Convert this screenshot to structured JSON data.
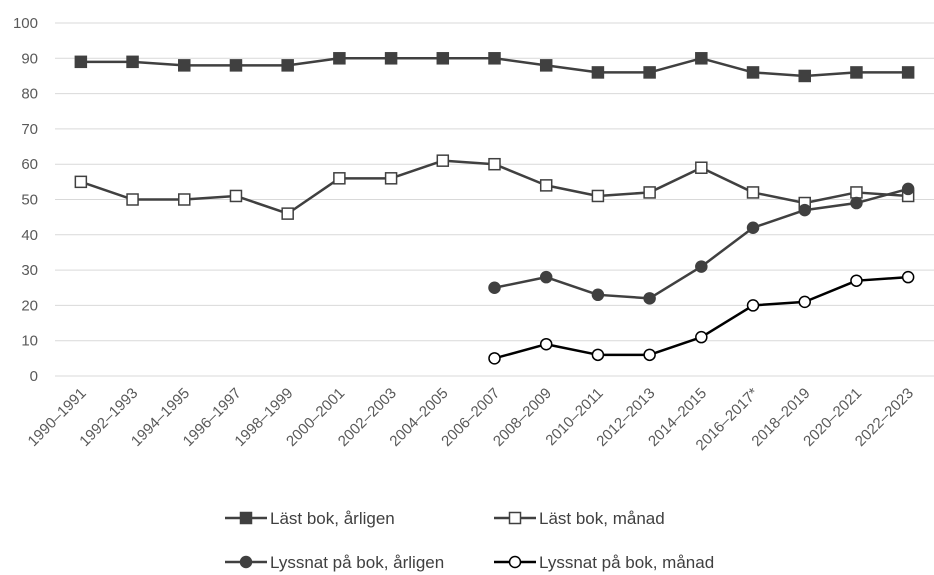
{
  "chart_data": {
    "type": "line",
    "title": "",
    "xlabel": "",
    "ylabel": "",
    "ylim": [
      0,
      100
    ],
    "yticks": [
      0,
      10,
      20,
      30,
      40,
      50,
      60,
      70,
      80,
      90,
      100
    ],
    "grid": "horizontal",
    "legend_position": "bottom",
    "categories": [
      "1990–1991",
      "1992–1993",
      "1994–1995",
      "1996–1997",
      "1998–1999",
      "2000–2001",
      "2002–2003",
      "2004–2005",
      "2006–2007",
      "2008–2009",
      "2010–2011",
      "2012–2013",
      "2014–2015",
      "2016–2017*",
      "2018–2019",
      "2020–2021",
      "2022–2023"
    ],
    "series": [
      {
        "name": "Läst bok, årligen",
        "marker": "square-filled",
        "color": "#404040",
        "values": [
          89,
          89,
          88,
          88,
          88,
          90,
          90,
          90,
          90,
          88,
          86,
          86,
          90,
          86,
          85,
          86,
          86
        ]
      },
      {
        "name": "Läst bok, månad",
        "marker": "square-open",
        "color": "#404040",
        "values": [
          55,
          50,
          50,
          51,
          46,
          56,
          56,
          61,
          60,
          54,
          51,
          52,
          59,
          52,
          49,
          52,
          51
        ]
      },
      {
        "name": "Lyssnat på bok, årligen",
        "marker": "circle-filled",
        "color": "#404040",
        "values": [
          null,
          null,
          null,
          null,
          null,
          null,
          null,
          null,
          25,
          28,
          23,
          22,
          31,
          42,
          47,
          49,
          53
        ]
      },
      {
        "name": "Lyssnat på bok, månad",
        "marker": "circle-open",
        "color": "#000000",
        "values": [
          null,
          null,
          null,
          null,
          null,
          null,
          null,
          null,
          5,
          9,
          6,
          6,
          11,
          20,
          21,
          27,
          28
        ]
      }
    ]
  }
}
